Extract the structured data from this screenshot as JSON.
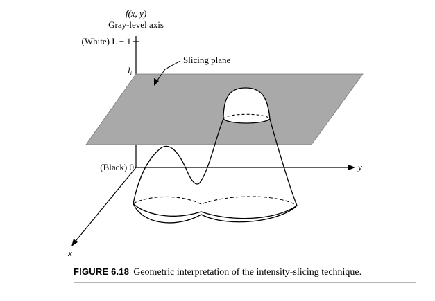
{
  "axes": {
    "vertical_label_fn": "f(x, y)",
    "vertical_label_name": "Gray-level axis",
    "white_level": "(White) L − 1",
    "slice_level": "l",
    "slice_level_sub": "i",
    "black_level": "(Black) 0",
    "y_label": "y",
    "x_label": "x"
  },
  "plane": {
    "label": "Slicing plane",
    "color": "#a9a9a9"
  },
  "caption": {
    "figure_label": "FIGURE 6.18",
    "text": "Geometric interpretation of the intensity-slicing technique."
  }
}
